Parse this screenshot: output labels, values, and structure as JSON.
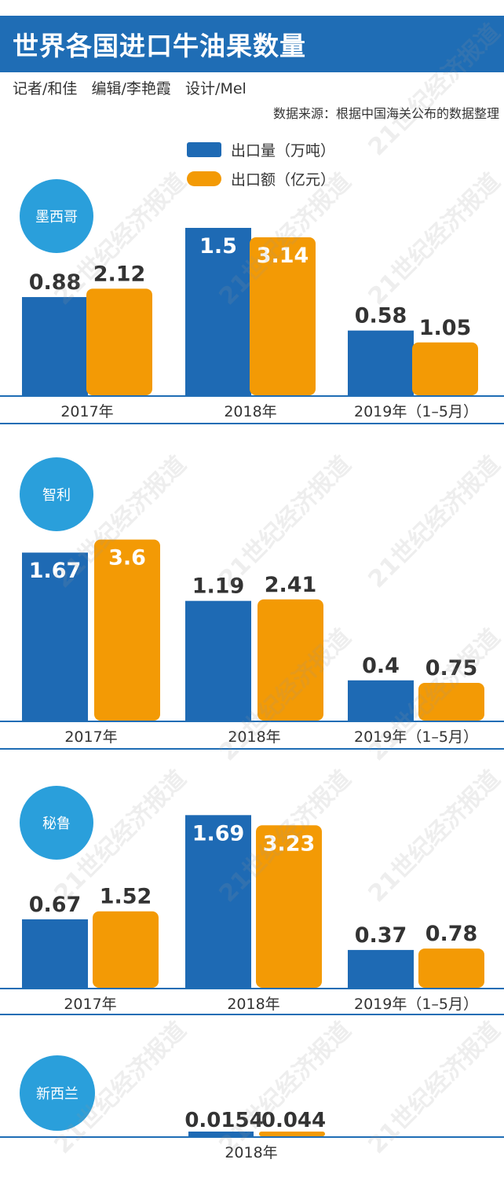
{
  "title": "世界各国进口牛油果数量",
  "credits": "记者/和佳   编辑/李艳霞   设计/Mel",
  "source": "数据来源：根据中国海关公布的数据整理",
  "watermark": "21世纪经济报道",
  "colors": {
    "volume": "#1e6ab4",
    "value": "#f39a05",
    "accent": "#1f6db5",
    "circle": "#2a9fdb"
  },
  "legend": [
    {
      "label": "出口量（万吨）",
      "color": "#1e6ab4"
    },
    {
      "label": "出口额（亿元）",
      "color": "#f39a05"
    }
  ],
  "chart_data": [
    {
      "type": "bar",
      "title": "墨西哥",
      "categories": [
        "2017年",
        "2018年",
        "2019年（1–5月）"
      ],
      "series": [
        {
          "name": "出口量（万吨）",
          "values": [
            0.88,
            1.5,
            0.58
          ]
        },
        {
          "name": "出口额（亿元）",
          "values": [
            2.12,
            3.14,
            1.05
          ]
        }
      ]
    },
    {
      "type": "bar",
      "title": "智利",
      "categories": [
        "2017年",
        "2018年",
        "2019年（1–5月）"
      ],
      "series": [
        {
          "name": "出口量（万吨）",
          "values": [
            1.67,
            1.19,
            0.4
          ]
        },
        {
          "name": "出口额（亿元）",
          "values": [
            3.6,
            2.41,
            0.75
          ]
        }
      ]
    },
    {
      "type": "bar",
      "title": "秘鲁",
      "categories": [
        "2017年",
        "2018年",
        "2019年（1–5月）"
      ],
      "series": [
        {
          "name": "出口量（万吨）",
          "values": [
            0.67,
            1.69,
            0.37
          ]
        },
        {
          "name": "出口额（亿元）",
          "values": [
            1.52,
            3.23,
            0.78
          ]
        }
      ]
    },
    {
      "type": "bar",
      "title": "新西兰",
      "categories": [
        "2018年"
      ],
      "series": [
        {
          "name": "出口量（万吨）",
          "values": [
            0.0154
          ]
        },
        {
          "name": "出口额（亿元）",
          "values": [
            0.044
          ]
        }
      ]
    }
  ]
}
